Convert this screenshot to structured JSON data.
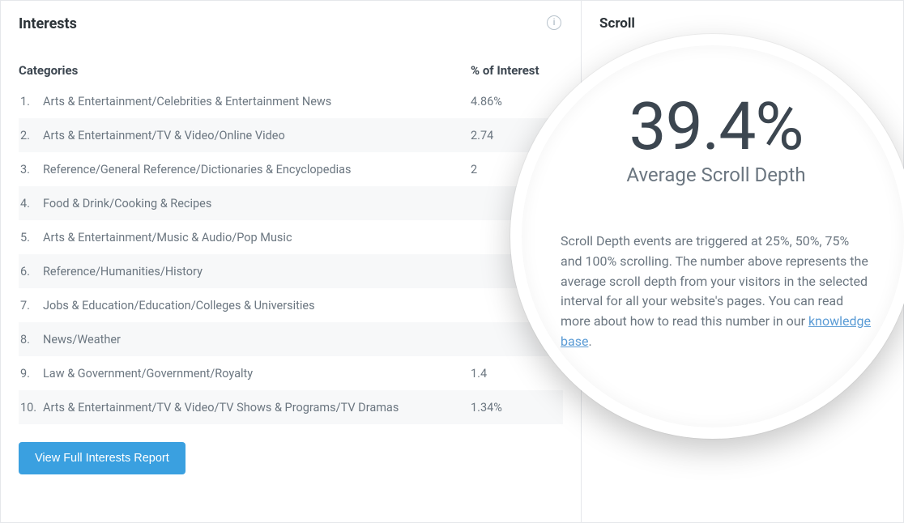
{
  "colors": {
    "panel_border": "#e5e7eb",
    "text_strong": "#2c3338",
    "text_header": "#3c4650",
    "text_muted": "#6b7680",
    "row_stripe": "#f7f8f9",
    "button_bg": "#3aa0e0",
    "button_text": "#ffffff",
    "link": "#5a9bd5",
    "info_icon": "#b8c3cc",
    "background": "#ffffff"
  },
  "interests": {
    "title": "Interests",
    "columns": {
      "category": "Categories",
      "percent": "% of Interest"
    },
    "rows": [
      {
        "n": "1.",
        "category": "Arts & Entertainment/Celebrities & Entertainment News",
        "percent": "4.86%"
      },
      {
        "n": "2.",
        "category": "Arts & Entertainment/TV & Video/Online Video",
        "percent": "2.74"
      },
      {
        "n": "3.",
        "category": "Reference/General Reference/Dictionaries & Encyclopedias",
        "percent": "2"
      },
      {
        "n": "4.",
        "category": "Food & Drink/Cooking & Recipes",
        "percent": ""
      },
      {
        "n": "5.",
        "category": "Arts & Entertainment/Music & Audio/Pop Music",
        "percent": ""
      },
      {
        "n": "6.",
        "category": "Reference/Humanities/History",
        "percent": ""
      },
      {
        "n": "7.",
        "category": "Jobs & Education/Education/Colleges & Universities",
        "percent": ""
      },
      {
        "n": "8.",
        "category": "News/Weather",
        "percent": ""
      },
      {
        "n": "9.",
        "category": "Law & Government/Government/Royalty",
        "percent": "1.4"
      },
      {
        "n": "10.",
        "category": "Arts & Entertainment/TV & Video/TV Shows & Programs/TV Dramas",
        "percent": "1.34%"
      }
    ],
    "button_label": "View Full Interests Report"
  },
  "scroll": {
    "title": "Scroll",
    "metric_value": "39.4%",
    "metric_label": "Average Scroll Depth",
    "description_pre": "Scroll Depth events are triggered at 25%, 50%, 75% and 100% scrolling. The number above represents the average scroll depth from your visitors in the selected interval for all your website's pages. You can read more about how to read this number in our ",
    "description_link_text": "knowledge base",
    "description_post": "."
  }
}
